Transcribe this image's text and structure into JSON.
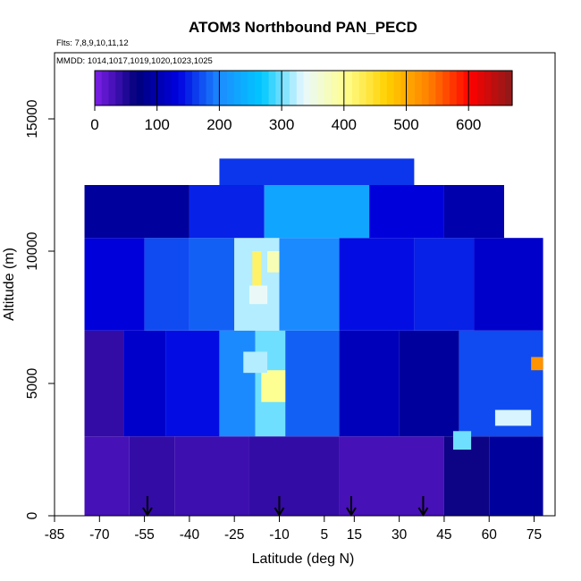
{
  "chart_data": {
    "type": "heatmap",
    "title": "ATOM3 Northbound PAN_PECD",
    "flights_note": "Flts: 7,8,9,10,11,12",
    "dates_note": "MMDD: 1014,1017,1019,1020,1023,1025",
    "xlabel": "Latitude (deg N)",
    "ylabel": "Altitude (m)",
    "xlim": [
      -85,
      82
    ],
    "ylim": [
      0,
      17500
    ],
    "x_ticks": [
      -85,
      -70,
      -55,
      -40,
      -25,
      -10,
      5,
      15,
      30,
      45,
      60,
      75
    ],
    "y_ticks": [
      0,
      5000,
      10000,
      15000
    ],
    "colorbar": {
      "range": [
        0,
        670
      ],
      "ticks": [
        0,
        100,
        200,
        300,
        400,
        500,
        600
      ],
      "colors": [
        "#7f1fe8",
        "#00007a",
        "#0000e0",
        "#1c8cff",
        "#00c8ff",
        "#e8f8ff",
        "#ffff90",
        "#ffd000",
        "#ff8000",
        "#ff0000",
        "#8b1a1a"
      ]
    },
    "arrow_latitudes": [
      -54,
      -10,
      14,
      38
    ],
    "cells": [
      {
        "lat_range": [
          -75,
          -60
        ],
        "alt_range": [
          0,
          3000
        ],
        "value": 30
      },
      {
        "lat_range": [
          -60,
          -45
        ],
        "alt_range": [
          0,
          3000
        ],
        "value": 40
      },
      {
        "lat_range": [
          -45,
          -20
        ],
        "alt_range": [
          0,
          3000
        ],
        "value": 35
      },
      {
        "lat_range": [
          -20,
          10
        ],
        "alt_range": [
          0,
          3000
        ],
        "value": 40
      },
      {
        "lat_range": [
          10,
          45
        ],
        "alt_range": [
          0,
          3000
        ],
        "value": 30
      },
      {
        "lat_range": [
          45,
          60
        ],
        "alt_range": [
          0,
          3000
        ],
        "value": 60
      },
      {
        "lat_range": [
          60,
          78
        ],
        "alt_range": [
          0,
          3000
        ],
        "value": 90
      },
      {
        "lat_range": [
          -75,
          -62
        ],
        "alt_range": [
          3000,
          7000
        ],
        "value": 40
      },
      {
        "lat_range": [
          -62,
          -48
        ],
        "alt_range": [
          3000,
          7000
        ],
        "value": 120
      },
      {
        "lat_range": [
          -48,
          -30
        ],
        "alt_range": [
          3000,
          7000
        ],
        "value": 140
      },
      {
        "lat_range": [
          -30,
          -18
        ],
        "alt_range": [
          3000,
          7000
        ],
        "value": 200
      },
      {
        "lat_range": [
          -18,
          -8
        ],
        "alt_range": [
          3000,
          7000
        ],
        "value": 300
      },
      {
        "lat_range": [
          -8,
          10
        ],
        "alt_range": [
          3000,
          7000
        ],
        "value": 180
      },
      {
        "lat_range": [
          10,
          30
        ],
        "alt_range": [
          3000,
          7000
        ],
        "value": 110
      },
      {
        "lat_range": [
          30,
          50
        ],
        "alt_range": [
          3000,
          7000
        ],
        "value": 90
      },
      {
        "lat_range": [
          50,
          78
        ],
        "alt_range": [
          3000,
          7000
        ],
        "value": 170
      },
      {
        "lat_range": [
          -75,
          -55
        ],
        "alt_range": [
          7000,
          10500
        ],
        "value": 130
      },
      {
        "lat_range": [
          -55,
          -40
        ],
        "alt_range": [
          7000,
          10500
        ],
        "value": 170
      },
      {
        "lat_range": [
          -40,
          -25
        ],
        "alt_range": [
          7000,
          10500
        ],
        "value": 180
      },
      {
        "lat_range": [
          -25,
          -10
        ],
        "alt_range": [
          7000,
          10500
        ],
        "value": 320
      },
      {
        "lat_range": [
          -10,
          10
        ],
        "alt_range": [
          7000,
          10500
        ],
        "value": 200
      },
      {
        "lat_range": [
          10,
          35
        ],
        "alt_range": [
          7000,
          10500
        ],
        "value": 140
      },
      {
        "lat_range": [
          35,
          55
        ],
        "alt_range": [
          7000,
          10500
        ],
        "value": 150
      },
      {
        "lat_range": [
          55,
          78
        ],
        "alt_range": [
          7000,
          10500
        ],
        "value": 120
      },
      {
        "lat_range": [
          -75,
          -40
        ],
        "alt_range": [
          10500,
          12500
        ],
        "value": 90
      },
      {
        "lat_range": [
          -40,
          -15
        ],
        "alt_range": [
          10500,
          12500
        ],
        "value": 150
      },
      {
        "lat_range": [
          -15,
          20
        ],
        "alt_range": [
          10500,
          12500
        ],
        "value": 230
      },
      {
        "lat_range": [
          20,
          45
        ],
        "alt_range": [
          10500,
          12500
        ],
        "value": 130
      },
      {
        "lat_range": [
          45,
          65
        ],
        "alt_range": [
          10500,
          12500
        ],
        "value": 100
      },
      {
        "lat_range": [
          -30,
          35
        ],
        "alt_range": [
          12500,
          13500
        ],
        "value": 160
      },
      {
        "lat_range": [
          -19,
          -16
        ],
        "alt_range": [
          8200,
          10000
        ],
        "value": 420
      },
      {
        "lat_range": [
          -14,
          -10
        ],
        "alt_range": [
          9200,
          10000
        ],
        "value": 380
      },
      {
        "lat_range": [
          -20,
          -14
        ],
        "alt_range": [
          8000,
          8700
        ],
        "value": 340
      },
      {
        "lat_range": [
          -16,
          -8
        ],
        "alt_range": [
          4300,
          5500
        ],
        "value": 400
      },
      {
        "lat_range": [
          -22,
          -14
        ],
        "alt_range": [
          5400,
          6200
        ],
        "value": 320
      },
      {
        "lat_range": [
          48,
          54
        ],
        "alt_range": [
          2500,
          3200
        ],
        "value": 300
      },
      {
        "lat_range": [
          62,
          74
        ],
        "alt_range": [
          3400,
          4000
        ],
        "value": 330
      },
      {
        "lat_range": [
          74,
          78
        ],
        "alt_range": [
          5500,
          6000
        ],
        "value": 520
      }
    ]
  }
}
